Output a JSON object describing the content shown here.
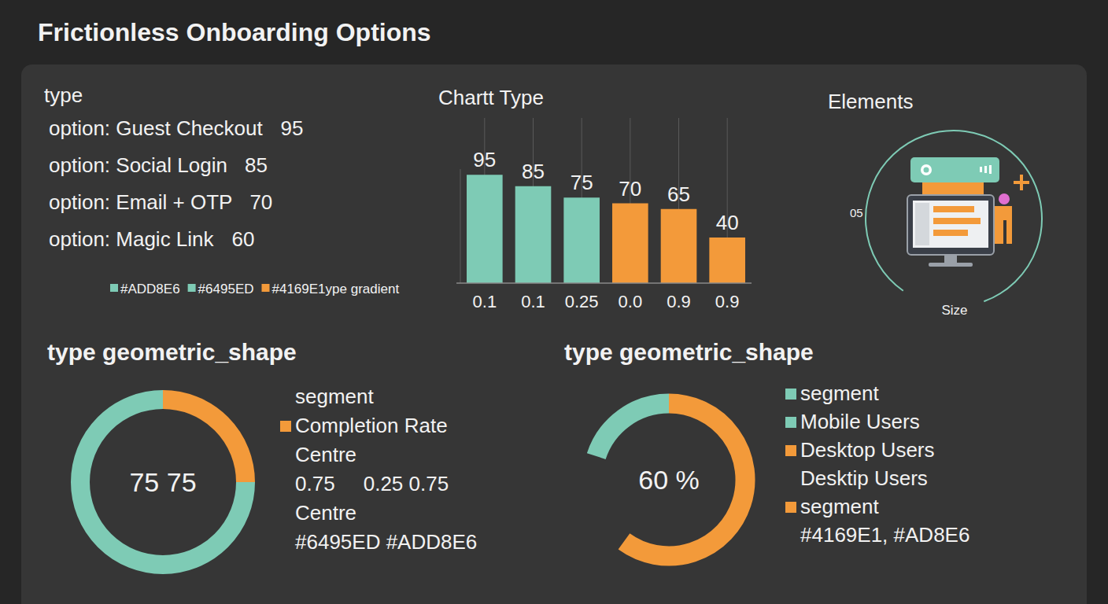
{
  "title": "Frictionless Onboarding Options",
  "options_panel": {
    "heading": "type",
    "items": [
      {
        "label": "option: Guest Checkout",
        "value": 95
      },
      {
        "label": "option: Social Login",
        "value": 85
      },
      {
        "label": "option: Email + OTP",
        "value": 70
      },
      {
        "label": "option: Magic Link",
        "value": 60
      }
    ],
    "swatches": [
      {
        "label": "#ADD8E6",
        "color": "#7ecbb5"
      },
      {
        "label": "#6495ED",
        "color": "#7ecbb5"
      },
      {
        "label": "#4169E1ype gradient",
        "color": "#f39a3a"
      }
    ]
  },
  "elements_panel": {
    "title": "Elements",
    "side_label": "05",
    "bottom_label": "Size"
  },
  "chart_data": [
    {
      "type": "bar",
      "title": "Chartt Type",
      "categories": [
        "0.1",
        "0.1",
        "0.25",
        "0.0",
        "0.9",
        "0.9"
      ],
      "values": [
        95,
        85,
        75,
        70,
        65,
        40
      ],
      "colors": [
        "#7ecbb5",
        "#7ecbb5",
        "#7ecbb5",
        "#f39a3a",
        "#f39a3a",
        "#f39a3a"
      ],
      "ylim": [
        0,
        100
      ],
      "data_labels": true,
      "tick_labels": "x",
      "grid": true
    },
    {
      "type": "donut",
      "title": "type geometric_shape",
      "values": [
        75,
        25
      ],
      "colors": [
        "#7ecbb5",
        "#f39a3a"
      ],
      "center_label": "75 75",
      "legend_items": [
        {
          "text": "segment"
        },
        {
          "text": "Completion Rate",
          "color": "#f39a3a"
        },
        {
          "text": "Centre"
        },
        {
          "text": "0.75     0.25 0.75"
        },
        {
          "text": "Centre"
        },
        {
          "text": "#6495ED #ADD8E6"
        }
      ]
    },
    {
      "type": "donut",
      "title": "type geometric_shape",
      "values": [
        20,
        60
      ],
      "colors": [
        "#7ecbb5",
        "#f39a3a"
      ],
      "center_label": "60 %",
      "legend_items": [
        {
          "text": "segment",
          "color": "#7ecbb5"
        },
        {
          "text": "Mobile Users",
          "color": "#7ecbb5"
        },
        {
          "text": "Desktop Users",
          "color": "#f39a3a"
        },
        {
          "text": "Desktip Users"
        },
        {
          "text": "segment",
          "color": "#f39a3a"
        },
        {
          "text": "#4169E1, #AD8E6"
        }
      ]
    }
  ]
}
